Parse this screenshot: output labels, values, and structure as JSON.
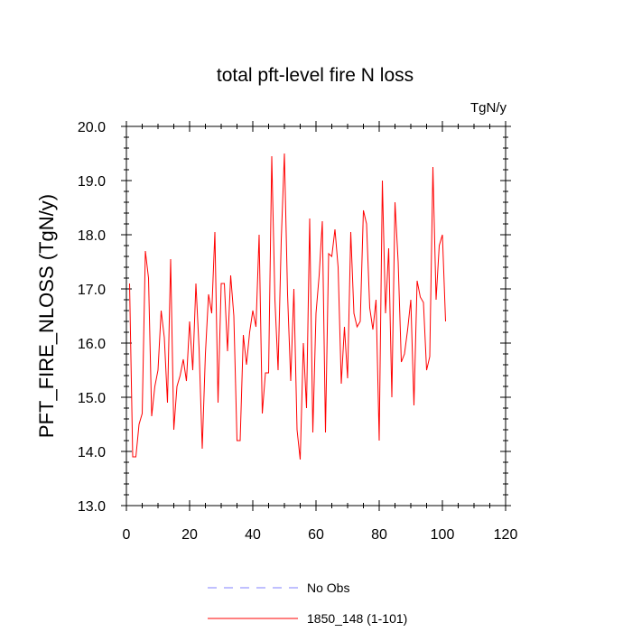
{
  "chart_data": {
    "type": "line",
    "title": "total pft-level fire N loss",
    "units": "TgN/y",
    "ylabel": "PFT_FIRE_NLOSS  (TgN/y)",
    "xlabel": "",
    "xlim": [
      0,
      120
    ],
    "ylim": [
      13.0,
      20.0
    ],
    "xticks": [
      0,
      20,
      40,
      60,
      80,
      100,
      120
    ],
    "yticks": [
      13.0,
      14.0,
      15.0,
      16.0,
      17.0,
      18.0,
      19.0,
      20.0
    ],
    "legend_position": "bottom-center",
    "series": [
      {
        "name": "No Obs",
        "color": "#8080ff",
        "dashed": true,
        "x": [],
        "values": []
      },
      {
        "name": "1850_148 (1-101)",
        "color": "#ff0000",
        "dashed": false,
        "x": [
          1,
          2,
          3,
          4,
          5,
          6,
          7,
          8,
          9,
          10,
          11,
          12,
          13,
          14,
          15,
          16,
          17,
          18,
          19,
          20,
          21,
          22,
          23,
          24,
          25,
          26,
          27,
          28,
          29,
          30,
          31,
          32,
          33,
          34,
          35,
          36,
          37,
          38,
          39,
          40,
          41,
          42,
          43,
          44,
          45,
          46,
          47,
          48,
          49,
          50,
          51,
          52,
          53,
          54,
          55,
          56,
          57,
          58,
          59,
          60,
          61,
          62,
          63,
          64,
          65,
          66,
          67,
          68,
          69,
          70,
          71,
          72,
          73,
          74,
          75,
          76,
          77,
          78,
          79,
          80,
          81,
          82,
          83,
          84,
          85,
          86,
          87,
          88,
          89,
          90,
          91,
          92,
          93,
          94,
          95,
          96,
          97,
          98,
          99,
          100,
          101
        ],
        "values": [
          17.1,
          13.9,
          13.9,
          14.5,
          14.7,
          17.7,
          17.2,
          14.65,
          15.2,
          15.5,
          16.6,
          16.1,
          14.9,
          17.55,
          14.4,
          15.2,
          15.4,
          15.7,
          15.3,
          16.4,
          15.5,
          17.1,
          15.9,
          14.05,
          15.8,
          16.9,
          16.55,
          18.05,
          14.9,
          17.1,
          17.1,
          15.85,
          17.25,
          16.5,
          14.2,
          14.2,
          16.15,
          15.6,
          16.2,
          16.6,
          16.3,
          18.0,
          14.7,
          15.45,
          15.45,
          19.45,
          16.8,
          15.5,
          17.9,
          19.5,
          16.9,
          15.3,
          17.0,
          14.4,
          13.85,
          16.0,
          14.8,
          18.3,
          14.35,
          16.55,
          17.25,
          18.25,
          14.35,
          17.65,
          17.6,
          18.1,
          17.4,
          15.25,
          16.3,
          15.35,
          18.05,
          16.55,
          16.3,
          16.4,
          18.45,
          18.2,
          16.65,
          16.25,
          16.8,
          14.2,
          19.0,
          16.55,
          17.75,
          15.0,
          18.6,
          17.5,
          15.65,
          15.8,
          16.25,
          16.8,
          14.85,
          17.15,
          16.85,
          16.75,
          15.5,
          15.75,
          19.25,
          16.8,
          17.8,
          18.0,
          16.4
        ]
      }
    ]
  }
}
